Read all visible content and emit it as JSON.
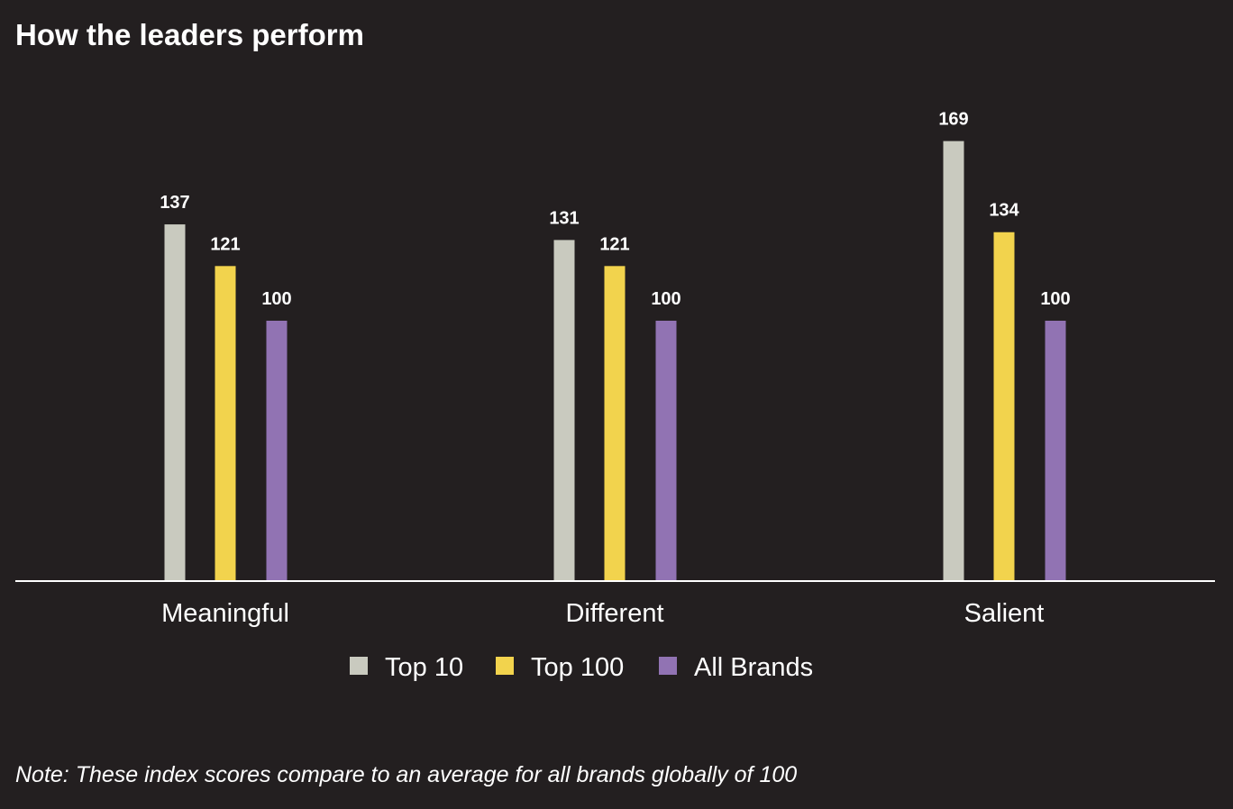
{
  "chart_data": {
    "type": "bar",
    "title": "How the leaders perform",
    "categories": [
      "Meaningful",
      "Different",
      "Salient"
    ],
    "series": [
      {
        "name": "Top 10",
        "color": "#c9cabf",
        "values": [
          137,
          131,
          169
        ]
      },
      {
        "name": "Top 100",
        "color": "#f2d34d",
        "values": [
          121,
          121,
          134
        ]
      },
      {
        "name": "All Brands",
        "color": "#9173b3",
        "values": [
          100,
          100,
          100
        ]
      }
    ],
    "xlabel": "",
    "ylabel": "",
    "ylim": [
      0,
      180
    ],
    "grid": false,
    "legend": "bottom-center",
    "note": "Note: These index scores compare to an average for all brands globally of 100"
  }
}
